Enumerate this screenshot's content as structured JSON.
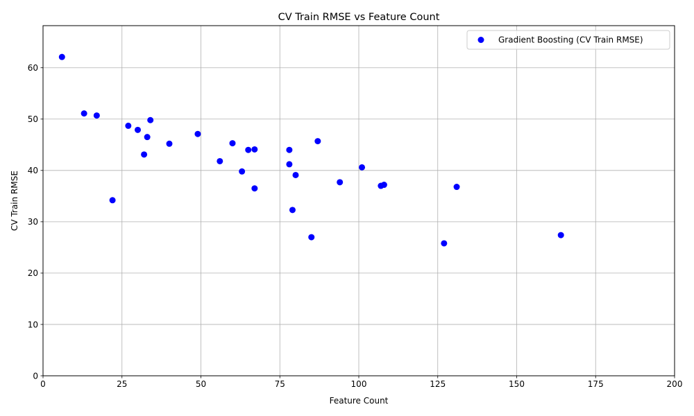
{
  "chart_data": {
    "type": "scatter",
    "title": "CV Train RMSE vs Feature Count",
    "xlabel": "Feature Count",
    "ylabel": "CV Train RMSE",
    "xlim": [
      0,
      200
    ],
    "ylim": [
      0,
      68.2
    ],
    "xticks": [
      0,
      25,
      50,
      75,
      100,
      125,
      150,
      175,
      200
    ],
    "yticks": [
      0,
      10,
      20,
      30,
      40,
      50,
      60
    ],
    "grid": true,
    "legend_position": "top-right",
    "series": [
      {
        "name": "Gradient Boosting (CV Train RMSE)",
        "color": "#0000ff",
        "marker": "circle",
        "points": [
          {
            "x": 6,
            "y": 62.1
          },
          {
            "x": 13,
            "y": 51.1
          },
          {
            "x": 17,
            "y": 50.7
          },
          {
            "x": 22,
            "y": 34.2
          },
          {
            "x": 27,
            "y": 48.7
          },
          {
            "x": 30,
            "y": 47.9
          },
          {
            "x": 32,
            "y": 43.1
          },
          {
            "x": 33,
            "y": 46.5
          },
          {
            "x": 34,
            "y": 49.8
          },
          {
            "x": 40,
            "y": 45.2
          },
          {
            "x": 49,
            "y": 47.1
          },
          {
            "x": 56,
            "y": 41.8
          },
          {
            "x": 60,
            "y": 45.3
          },
          {
            "x": 63,
            "y": 39.8
          },
          {
            "x": 65,
            "y": 44.0
          },
          {
            "x": 67,
            "y": 44.1
          },
          {
            "x": 67,
            "y": 36.5
          },
          {
            "x": 78,
            "y": 44.0
          },
          {
            "x": 78,
            "y": 41.2
          },
          {
            "x": 79,
            "y": 32.3
          },
          {
            "x": 80,
            "y": 39.1
          },
          {
            "x": 85,
            "y": 27.0
          },
          {
            "x": 87,
            "y": 45.7
          },
          {
            "x": 94,
            "y": 37.7
          },
          {
            "x": 101,
            "y": 40.6
          },
          {
            "x": 107,
            "y": 37.0
          },
          {
            "x": 108,
            "y": 37.2
          },
          {
            "x": 127,
            "y": 25.8
          },
          {
            "x": 131,
            "y": 36.8
          },
          {
            "x": 164,
            "y": 27.4
          }
        ]
      }
    ]
  }
}
